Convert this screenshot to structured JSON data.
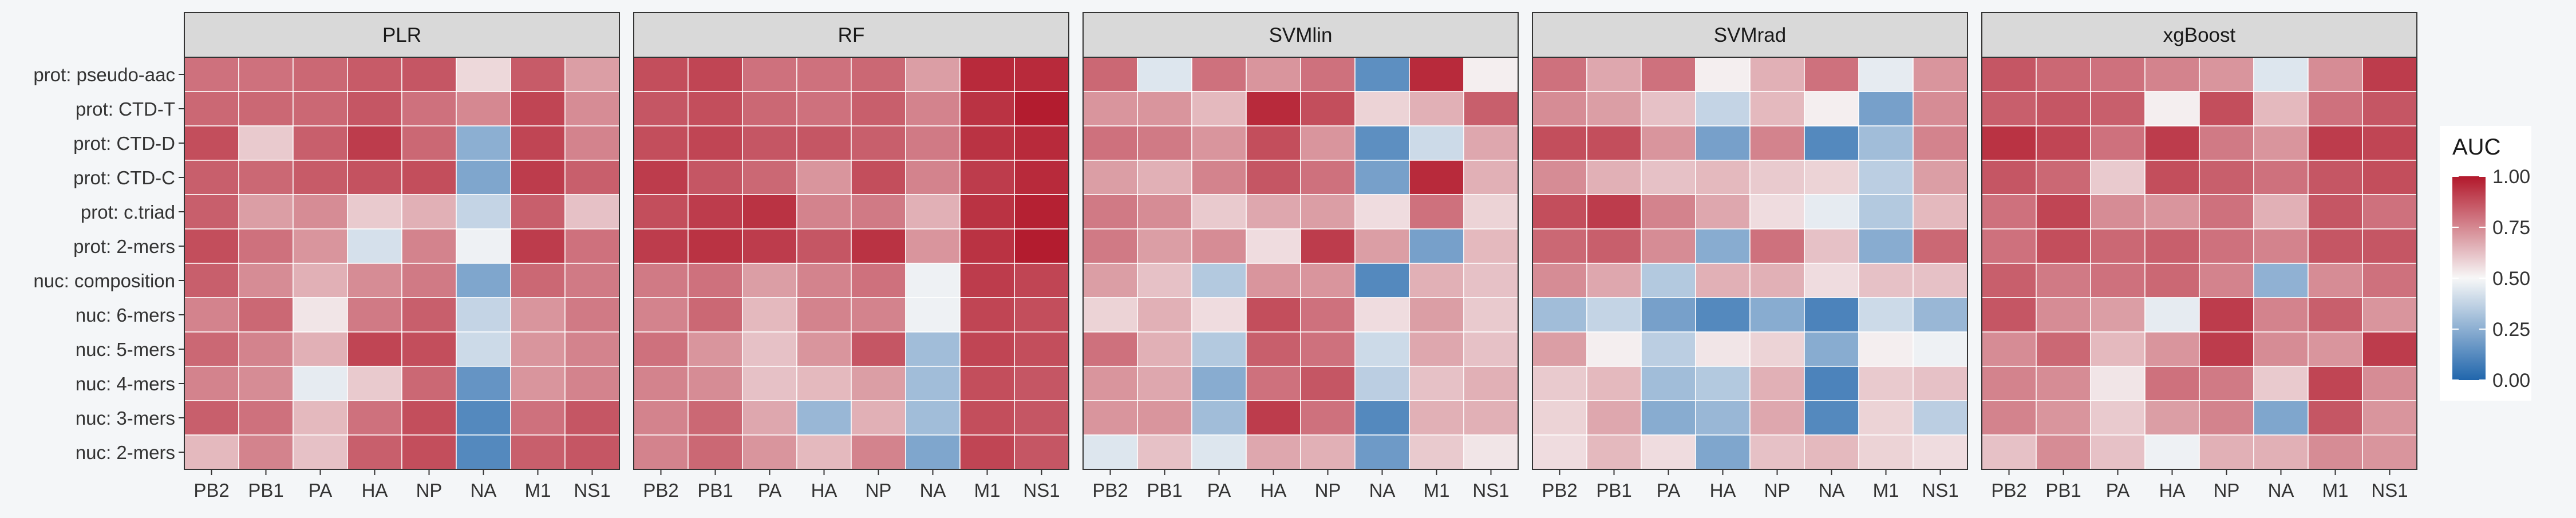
{
  "chart_data": {
    "type": "heatmap",
    "legend": {
      "title": "AUC",
      "position": "right",
      "min": 0,
      "max": 1,
      "ticks": [
        "1.00",
        "0.75",
        "0.50",
        "0.25",
        "0.00"
      ],
      "colors": {
        "low": "#2166ac",
        "mid": "#f7f7f7",
        "high": "#b2182b"
      }
    },
    "x_categories": [
      "PB2",
      "PB1",
      "PA",
      "HA",
      "NP",
      "NA",
      "M1",
      "NS1"
    ],
    "y_categories": [
      "prot: pseudo-aac",
      "prot: CTD-T",
      "prot: CTD-D",
      "prot: CTD-C",
      "prot: c.triad",
      "prot: 2-mers",
      "nuc: composition",
      "nuc: 6-mers",
      "nuc: 5-mers",
      "nuc: 4-mers",
      "nuc: 3-mers",
      "nuc: 2-mers"
    ],
    "panels": [
      {
        "name": "PLR",
        "values": [
          [
            0.8,
            0.8,
            0.82,
            0.85,
            0.86,
            0.57,
            0.85,
            0.7
          ],
          [
            0.82,
            0.82,
            0.82,
            0.86,
            0.8,
            0.75,
            0.9,
            0.74
          ],
          [
            0.88,
            0.6,
            0.84,
            0.92,
            0.82,
            0.25,
            0.9,
            0.76
          ],
          [
            0.84,
            0.82,
            0.85,
            0.87,
            0.88,
            0.22,
            0.92,
            0.84
          ],
          [
            0.84,
            0.7,
            0.74,
            0.6,
            0.66,
            0.38,
            0.84,
            0.62
          ],
          [
            0.88,
            0.8,
            0.72,
            0.42,
            0.76,
            0.48,
            0.92,
            0.8
          ],
          [
            0.84,
            0.74,
            0.66,
            0.74,
            0.78,
            0.22,
            0.82,
            0.78
          ],
          [
            0.76,
            0.82,
            0.54,
            0.78,
            0.84,
            0.38,
            0.72,
            0.78
          ],
          [
            0.82,
            0.76,
            0.66,
            0.9,
            0.88,
            0.4,
            0.72,
            0.76
          ],
          [
            0.76,
            0.74,
            0.46,
            0.6,
            0.82,
            0.16,
            0.72,
            0.76
          ],
          [
            0.84,
            0.8,
            0.64,
            0.8,
            0.88,
            0.12,
            0.8,
            0.86
          ],
          [
            0.64,
            0.76,
            0.62,
            0.84,
            0.88,
            0.12,
            0.84,
            0.86
          ]
        ]
      },
      {
        "name": "RF",
        "values": [
          [
            0.88,
            0.9,
            0.8,
            0.8,
            0.82,
            0.7,
            0.96,
            0.96
          ],
          [
            0.86,
            0.88,
            0.82,
            0.8,
            0.84,
            0.76,
            0.94,
            0.99
          ],
          [
            0.88,
            0.9,
            0.86,
            0.86,
            0.84,
            0.78,
            0.94,
            0.96
          ],
          [
            0.92,
            0.86,
            0.82,
            0.72,
            0.88,
            0.76,
            0.92,
            0.96
          ],
          [
            0.88,
            0.92,
            0.94,
            0.76,
            0.78,
            0.66,
            0.94,
            0.98
          ],
          [
            0.92,
            0.94,
            0.92,
            0.86,
            0.94,
            0.72,
            0.94,
            0.99
          ],
          [
            0.78,
            0.8,
            0.7,
            0.76,
            0.8,
            0.48,
            0.92,
            0.9
          ],
          [
            0.76,
            0.82,
            0.64,
            0.76,
            0.76,
            0.48,
            0.9,
            0.88
          ],
          [
            0.8,
            0.72,
            0.62,
            0.72,
            0.86,
            0.3,
            0.9,
            0.88
          ],
          [
            0.76,
            0.74,
            0.62,
            0.64,
            0.7,
            0.3,
            0.88,
            0.86
          ],
          [
            0.76,
            0.82,
            0.68,
            0.28,
            0.66,
            0.3,
            0.88,
            0.86
          ],
          [
            0.76,
            0.82,
            0.72,
            0.64,
            0.76,
            0.22,
            0.9,
            0.86
          ]
        ]
      },
      {
        "name": "SVMlin",
        "values": [
          [
            0.82,
            0.44,
            0.8,
            0.72,
            0.8,
            0.14,
            0.96,
            0.52
          ],
          [
            0.72,
            0.72,
            0.64,
            0.96,
            0.88,
            0.58,
            0.66,
            0.84
          ],
          [
            0.8,
            0.78,
            0.72,
            0.88,
            0.72,
            0.14,
            0.4,
            0.68
          ],
          [
            0.7,
            0.66,
            0.76,
            0.86,
            0.8,
            0.2,
            0.96,
            0.66
          ],
          [
            0.78,
            0.74,
            0.6,
            0.68,
            0.7,
            0.56,
            0.8,
            0.58
          ],
          [
            0.78,
            0.7,
            0.74,
            0.56,
            0.92,
            0.7,
            0.2,
            0.64
          ],
          [
            0.7,
            0.62,
            0.34,
            0.72,
            0.72,
            0.12,
            0.66,
            0.62
          ],
          [
            0.58,
            0.66,
            0.56,
            0.88,
            0.8,
            0.56,
            0.7,
            0.6
          ],
          [
            0.8,
            0.66,
            0.34,
            0.84,
            0.8,
            0.4,
            0.68,
            0.62
          ],
          [
            0.72,
            0.68,
            0.24,
            0.8,
            0.86,
            0.36,
            0.62,
            0.66
          ],
          [
            0.72,
            0.72,
            0.3,
            0.92,
            0.8,
            0.12,
            0.66,
            0.66
          ],
          [
            0.44,
            0.62,
            0.44,
            0.68,
            0.66,
            0.18,
            0.6,
            0.54
          ]
        ]
      },
      {
        "name": "SVMrad",
        "values": [
          [
            0.8,
            0.68,
            0.8,
            0.52,
            0.66,
            0.8,
            0.46,
            0.72
          ],
          [
            0.74,
            0.7,
            0.62,
            0.38,
            0.64,
            0.52,
            0.2,
            0.74
          ],
          [
            0.88,
            0.88,
            0.72,
            0.2,
            0.76,
            0.12,
            0.3,
            0.76
          ],
          [
            0.74,
            0.66,
            0.62,
            0.64,
            0.6,
            0.58,
            0.36,
            0.7
          ],
          [
            0.88,
            0.92,
            0.76,
            0.68,
            0.56,
            0.46,
            0.34,
            0.64
          ],
          [
            0.82,
            0.84,
            0.74,
            0.24,
            0.8,
            0.62,
            0.24,
            0.82
          ],
          [
            0.74,
            0.68,
            0.34,
            0.66,
            0.66,
            0.56,
            0.62,
            0.62
          ],
          [
            0.3,
            0.38,
            0.2,
            0.12,
            0.24,
            0.1,
            0.4,
            0.28
          ],
          [
            0.7,
            0.52,
            0.36,
            0.54,
            0.58,
            0.24,
            0.52,
            0.48
          ],
          [
            0.6,
            0.64,
            0.3,
            0.34,
            0.66,
            0.1,
            0.6,
            0.62
          ],
          [
            0.58,
            0.68,
            0.24,
            0.28,
            0.68,
            0.12,
            0.58,
            0.36
          ],
          [
            0.56,
            0.64,
            0.56,
            0.22,
            0.62,
            0.64,
            0.58,
            0.56
          ]
        ]
      },
      {
        "name": "xgBoost",
        "values": [
          [
            0.86,
            0.82,
            0.8,
            0.76,
            0.72,
            0.44,
            0.74,
            0.92
          ],
          [
            0.84,
            0.86,
            0.84,
            0.52,
            0.88,
            0.64,
            0.8,
            0.86
          ],
          [
            0.94,
            0.9,
            0.8,
            0.92,
            0.78,
            0.72,
            0.92,
            0.9
          ],
          [
            0.86,
            0.82,
            0.6,
            0.88,
            0.84,
            0.8,
            0.86,
            0.88
          ],
          [
            0.8,
            0.9,
            0.74,
            0.72,
            0.8,
            0.66,
            0.86,
            0.8
          ],
          [
            0.8,
            0.88,
            0.82,
            0.84,
            0.8,
            0.76,
            0.86,
            0.86
          ],
          [
            0.84,
            0.78,
            0.8,
            0.82,
            0.76,
            0.26,
            0.74,
            0.8
          ],
          [
            0.86,
            0.74,
            0.7,
            0.46,
            0.92,
            0.76,
            0.84,
            0.72
          ],
          [
            0.74,
            0.82,
            0.64,
            0.72,
            0.92,
            0.74,
            0.72,
            0.92
          ],
          [
            0.76,
            0.74,
            0.54,
            0.8,
            0.78,
            0.6,
            0.9,
            0.74
          ],
          [
            0.76,
            0.72,
            0.6,
            0.7,
            0.76,
            0.22,
            0.86,
            0.72
          ],
          [
            0.62,
            0.74,
            0.62,
            0.48,
            0.66,
            0.66,
            0.74,
            0.72
          ]
        ]
      }
    ]
  }
}
